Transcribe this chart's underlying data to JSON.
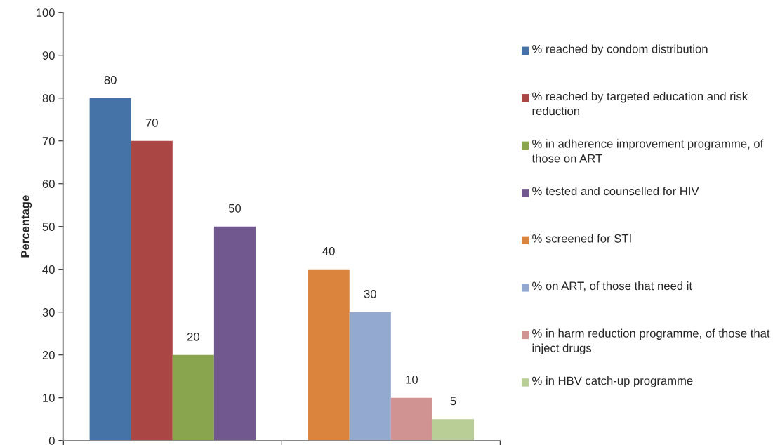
{
  "chart_data": {
    "type": "bar",
    "ylabel": "Percentage",
    "categories": [
      null,
      null
    ],
    "series": [
      {
        "name": "% reached by condom distribution",
        "color": "#4572a7",
        "values": [
          80,
          null
        ]
      },
      {
        "name": "% reached by targeted education and risk reduction",
        "color": "#aa4643",
        "values": [
          70,
          null
        ]
      },
      {
        "name": "% in adherence improvement programme, of those on ART",
        "color": "#89a54e",
        "values": [
          20,
          null
        ]
      },
      {
        "name": "% tested and counselled for HIV",
        "color": "#71588f",
        "values": [
          50,
          null
        ]
      },
      {
        "name": "% screened for STI",
        "color": "#db843d",
        "values": [
          null,
          40
        ]
      },
      {
        "name": "% on ART, of those that need it",
        "color": "#93a9cf",
        "values": [
          null,
          30
        ]
      },
      {
        "name": "% in harm reduction programme, of those that inject drugs",
        "color": "#d19392",
        "values": [
          null,
          10
        ]
      },
      {
        "name": "% in HBV catch-up programme",
        "color": "#b9cd96",
        "values": [
          null,
          5
        ]
      }
    ],
    "ylim": [
      0,
      100
    ],
    "yticks": [
      0,
      10,
      20,
      30,
      40,
      50,
      60,
      70,
      80,
      90,
      100
    ],
    "data_labels": true,
    "grid": false,
    "legend": "right",
    "tick_labels": "y"
  }
}
